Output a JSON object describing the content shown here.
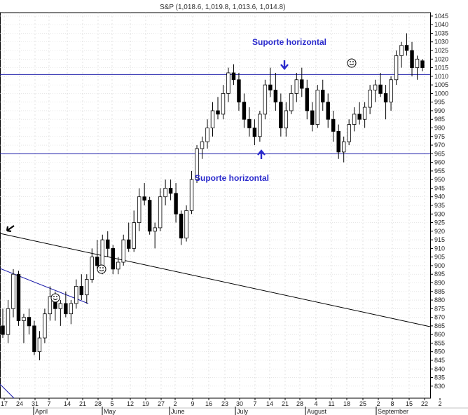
{
  "chart_data": {
    "type": "candlestick",
    "title": "S&P (1,018.6, 1,019.8, 1,013.6, 1,014.8)",
    "ylim": [
      823,
      1047
    ],
    "y_ticks": [
      830,
      835,
      840,
      845,
      850,
      855,
      860,
      865,
      870,
      875,
      880,
      885,
      890,
      895,
      900,
      905,
      910,
      915,
      920,
      925,
      930,
      935,
      940,
      945,
      950,
      955,
      960,
      965,
      970,
      975,
      980,
      985,
      990,
      995,
      1000,
      1005,
      1010,
      1015,
      1020,
      1025,
      1030,
      1035,
      1040,
      1045
    ],
    "x_tick_labels": [
      "17",
      "24",
      "31",
      "7",
      "14",
      "21",
      "28",
      "5",
      "12",
      "19",
      "27",
      "2",
      "9",
      "16",
      "23",
      "30",
      "7",
      "14",
      "21",
      "28",
      "4",
      "11",
      "18",
      "25",
      "2",
      "8",
      "15",
      "22",
      "2"
    ],
    "month_labels": [
      "April",
      "May",
      "June",
      "July",
      "August",
      "September"
    ],
    "grid": true,
    "colors": {
      "up": "#ffffff",
      "down": "#000000",
      "hline": "#1a1aa8",
      "annotation": "#2a2acc"
    },
    "horizontal_levels": [
      1011,
      965
    ],
    "annotations": [
      {
        "text": "Suporte horizontal",
        "near_level": 1011
      },
      {
        "text": "Suporte horizontal",
        "near_level": 965
      }
    ],
    "candles": [
      [
        865,
        875,
        858,
        860
      ],
      [
        860,
        880,
        855,
        875
      ],
      [
        875,
        898,
        870,
        895
      ],
      [
        895,
        897,
        865,
        868
      ],
      [
        868,
        872,
        855,
        870
      ],
      [
        870,
        875,
        860,
        865
      ],
      [
        865,
        868,
        848,
        850
      ],
      [
        850,
        862,
        845,
        858
      ],
      [
        858,
        875,
        855,
        872
      ],
      [
        872,
        888,
        868,
        882
      ],
      [
        882,
        885,
        868,
        875
      ],
      [
        875,
        880,
        865,
        878
      ],
      [
        878,
        885,
        870,
        872
      ],
      [
        872,
        880,
        866,
        878
      ],
      [
        878,
        892,
        875,
        888
      ],
      [
        888,
        895,
        880,
        883
      ],
      [
        883,
        895,
        878,
        892
      ],
      [
        892,
        910,
        890,
        905
      ],
      [
        905,
        915,
        898,
        900
      ],
      [
        900,
        918,
        895,
        915
      ],
      [
        915,
        920,
        905,
        910
      ],
      [
        910,
        912,
        895,
        898
      ],
      [
        898,
        905,
        895,
        902
      ],
      [
        902,
        918,
        900,
        915
      ],
      [
        915,
        925,
        908,
        910
      ],
      [
        910,
        932,
        908,
        925
      ],
      [
        925,
        945,
        920,
        940
      ],
      [
        940,
        948,
        935,
        938
      ],
      [
        938,
        940,
        918,
        920
      ],
      [
        920,
        925,
        910,
        922
      ],
      [
        922,
        945,
        920,
        940
      ],
      [
        940,
        950,
        935,
        945
      ],
      [
        945,
        950,
        938,
        942
      ],
      [
        942,
        948,
        925,
        930
      ],
      [
        930,
        932,
        912,
        916
      ],
      [
        916,
        935,
        914,
        932
      ],
      [
        932,
        955,
        930,
        950
      ],
      [
        950,
        970,
        948,
        968
      ],
      [
        968,
        975,
        962,
        972
      ],
      [
        972,
        985,
        968,
        980
      ],
      [
        980,
        995,
        975,
        990
      ],
      [
        990,
        998,
        985,
        988
      ],
      [
        988,
        1005,
        985,
        1000
      ],
      [
        1000,
        1015,
        995,
        1012
      ],
      [
        1012,
        1017,
        1005,
        1008
      ],
      [
        1008,
        1012,
        990,
        995
      ],
      [
        995,
        1000,
        980,
        985
      ],
      [
        985,
        992,
        975,
        980
      ],
      [
        980,
        985,
        970,
        975
      ],
      [
        975,
        990,
        972,
        988
      ],
      [
        988,
        1008,
        985,
        1005
      ],
      [
        1005,
        1015,
        998,
        1002
      ],
      [
        1002,
        1012,
        990,
        995
      ],
      [
        995,
        1000,
        975,
        980
      ],
      [
        980,
        995,
        975,
        990
      ],
      [
        990,
        1005,
        988,
        1000
      ],
      [
        1000,
        1012,
        995,
        1008
      ],
      [
        1008,
        1015,
        998,
        1003
      ],
      [
        1003,
        1008,
        985,
        990
      ],
      [
        990,
        995,
        978,
        982
      ],
      [
        982,
        1005,
        980,
        1002
      ],
      [
        1002,
        1008,
        990,
        995
      ],
      [
        995,
        1000,
        980,
        985
      ],
      [
        985,
        990,
        972,
        978
      ],
      [
        978,
        982,
        962,
        966
      ],
      [
        966,
        975,
        960,
        972
      ],
      [
        972,
        985,
        970,
        982
      ],
      [
        982,
        992,
        978,
        988
      ],
      [
        988,
        995,
        982,
        985
      ],
      [
        985,
        995,
        980,
        992
      ],
      [
        992,
        1005,
        988,
        1002
      ],
      [
        1002,
        1008,
        995,
        1005
      ],
      [
        1005,
        1012,
        998,
        1000
      ],
      [
        1000,
        1005,
        985,
        995
      ],
      [
        995,
        1010,
        990,
        1008
      ],
      [
        1008,
        1025,
        1005,
        1022
      ],
      [
        1022,
        1030,
        1015,
        1028
      ],
      [
        1028,
        1035,
        1022,
        1025
      ],
      [
        1025,
        1030,
        1010,
        1015
      ],
      [
        1015,
        1022,
        1008,
        1020
      ],
      [
        1019,
        1020,
        1013,
        1015
      ]
    ]
  }
}
